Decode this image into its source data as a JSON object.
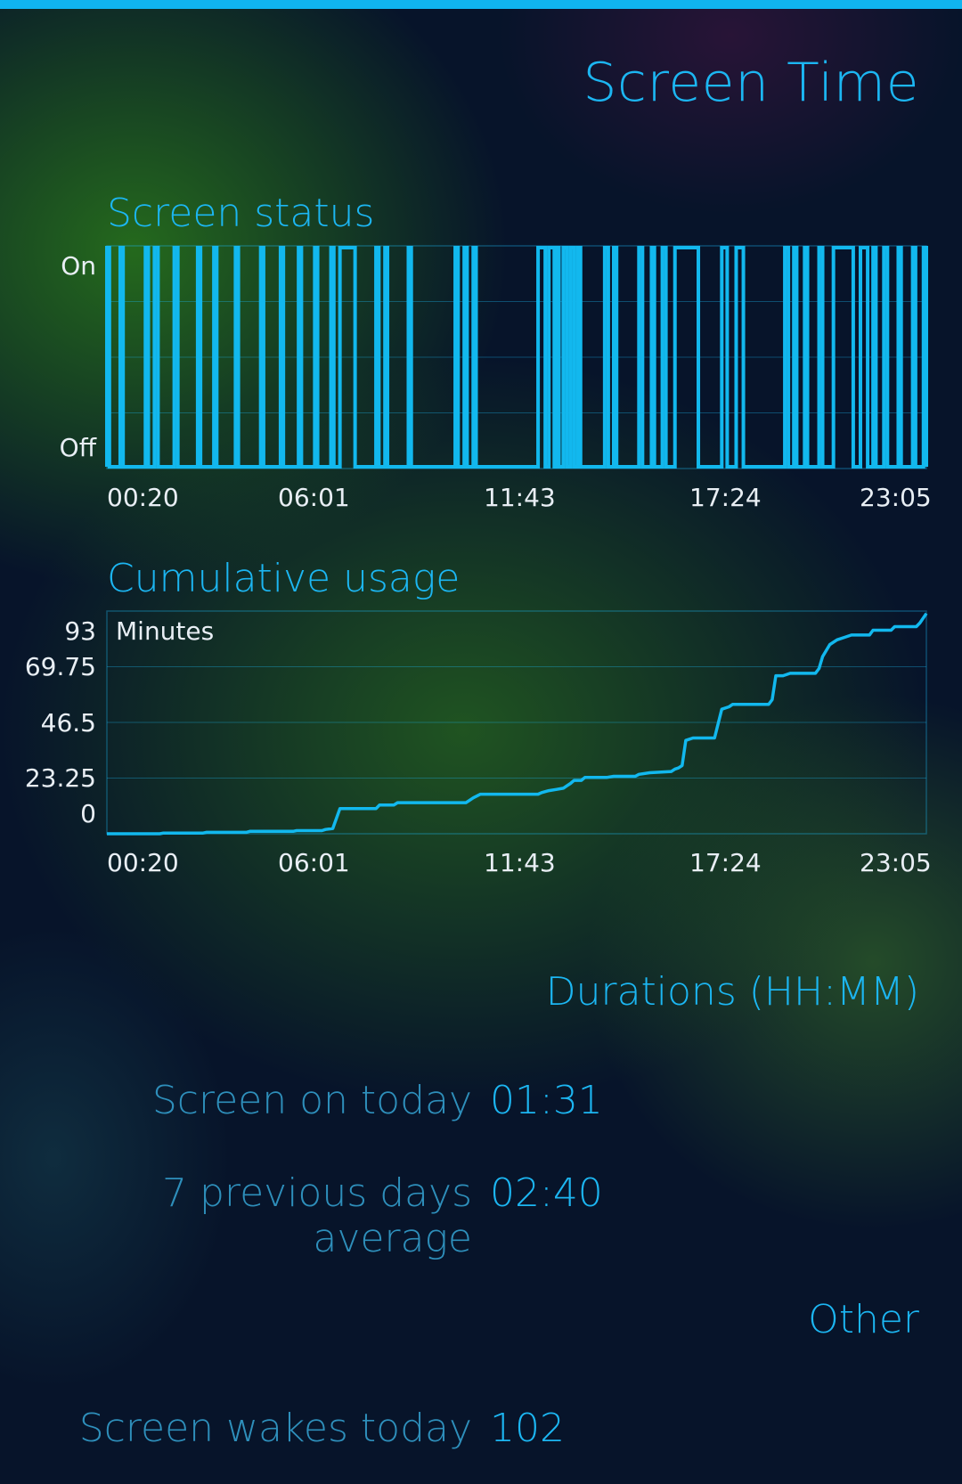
{
  "app": {
    "title": "Screen Time"
  },
  "status_chart": {
    "title": "Screen status",
    "y_labels": [
      "On",
      "Off"
    ],
    "x_labels": [
      "00:20",
      "06:01",
      "11:43",
      "17:24",
      "23:05"
    ]
  },
  "usage_chart": {
    "title": "Cumulative usage",
    "unit_label": "Minutes",
    "y_labels": [
      "93",
      "69.75",
      "46.5",
      "23.25",
      "0"
    ],
    "x_labels": [
      "00:20",
      "06:01",
      "11:43",
      "17:24",
      "23:05"
    ]
  },
  "durations": {
    "header": "Durations (HH:MM)",
    "rows": [
      {
        "label": "Screen on today",
        "value": "01:31"
      },
      {
        "label": "7 previous days average",
        "value": "02:40"
      }
    ]
  },
  "other": {
    "header": "Other",
    "rows": [
      {
        "label": "Screen wakes today",
        "value": "102"
      }
    ]
  },
  "colors": {
    "accent": "#1cb6f2",
    "label": "#2e8fbb",
    "line": "#12b8ee"
  },
  "chart_data": [
    {
      "type": "line",
      "title": "Screen status",
      "x_ticks": [
        "00:20",
        "06:01",
        "11:43",
        "17:24",
        "23:05"
      ],
      "y_ticks": [
        "On",
        "Off"
      ],
      "on_intervals_hours": [
        [
          0.33,
          0.4
        ],
        [
          0.7,
          0.78
        ],
        [
          1.4,
          1.48
        ],
        [
          1.65,
          1.75
        ],
        [
          2.2,
          2.3
        ],
        [
          2.85,
          2.93
        ],
        [
          3.3,
          3.38
        ],
        [
          3.9,
          3.98
        ],
        [
          4.6,
          4.68
        ],
        [
          5.15,
          5.23
        ],
        [
          5.65,
          5.73
        ],
        [
          6.1,
          6.18
        ],
        [
          6.55,
          6.63
        ],
        [
          6.8,
          7.22
        ],
        [
          7.8,
          7.88
        ],
        [
          8.05,
          8.12
        ],
        [
          8.7,
          8.78
        ],
        [
          10.0,
          10.08
        ],
        [
          10.25,
          10.33
        ],
        [
          10.5,
          10.58
        ],
        [
          12.3,
          12.5
        ],
        [
          12.6,
          12.75
        ],
        [
          12.82,
          12.88
        ],
        [
          13.0,
          13.1
        ],
        [
          13.2,
          13.3
        ],
        [
          13.4,
          13.48
        ],
        [
          14.15,
          14.25
        ],
        [
          14.4,
          14.48
        ],
        [
          15.1,
          15.2
        ],
        [
          15.45,
          15.53
        ],
        [
          15.75,
          15.85
        ],
        [
          16.1,
          16.75
        ],
        [
          17.4,
          17.55
        ],
        [
          17.8,
          18.0
        ],
        [
          19.15,
          19.25
        ],
        [
          19.4,
          19.48
        ],
        [
          19.7,
          19.78
        ],
        [
          20.1,
          20.2
        ],
        [
          20.5,
          21.05
        ],
        [
          21.25,
          21.45
        ],
        [
          21.6,
          21.68
        ],
        [
          21.9,
          22.0
        ],
        [
          22.3,
          22.38
        ],
        [
          22.7,
          22.78
        ],
        [
          23.0,
          23.08
        ]
      ]
    },
    {
      "type": "line",
      "title": "Cumulative usage",
      "ylabel": "Minutes",
      "x_ticks": [
        "00:20",
        "06:01",
        "11:43",
        "17:24",
        "23:05"
      ],
      "y_ticks": [
        93,
        69.75,
        46.5,
        23.25,
        0
      ],
      "ylim": [
        0,
        93
      ],
      "xlim_hours": [
        0.33,
        23.08
      ],
      "series": [
        {
          "x_hours": [
            0.33,
            1.8,
            1.9,
            3.0,
            3.1,
            4.2,
            4.3,
            5.5,
            5.6,
            6.3,
            6.4,
            6.6,
            6.8,
            7.8,
            7.9,
            8.3,
            8.4,
            10.3,
            10.4,
            10.5,
            10.7,
            12.3,
            12.4,
            12.6,
            12.8,
            13.0,
            13.1,
            13.2,
            13.3,
            13.5,
            13.6,
            14.2,
            14.4,
            15.0,
            15.1,
            15.4,
            16.0,
            16.1,
            16.2,
            16.3,
            16.4,
            16.6,
            16.8,
            17.1,
            17.2,
            17.4,
            17.6,
            17.7,
            18.7,
            18.8,
            18.9,
            19.1,
            19.3,
            20.0,
            20.1,
            20.2,
            20.4,
            20.6,
            20.8,
            21.0,
            21.5,
            21.6,
            22.1,
            22.2,
            22.8,
            22.9,
            23.08
          ],
          "y_minutes": [
            0,
            0,
            0.3,
            0.3,
            0.6,
            0.6,
            1.0,
            1.0,
            1.3,
            1.3,
            1.8,
            2.2,
            10.5,
            10.5,
            12.0,
            12.0,
            13.0,
            13.0,
            14.0,
            15.0,
            16.5,
            16.5,
            17.2,
            18.0,
            18.5,
            19.0,
            20.0,
            21.0,
            22.3,
            22.3,
            23.5,
            23.5,
            24.0,
            24.0,
            24.8,
            25.5,
            26.0,
            27.0,
            27.5,
            28.5,
            39.0,
            40.0,
            40.0,
            40.0,
            40.0,
            52.0,
            53.0,
            54.0,
            54.0,
            56.0,
            66.0,
            66.0,
            67.0,
            67.0,
            69.0,
            74.0,
            79.0,
            81.0,
            82.0,
            83.0,
            83.0,
            85.0,
            85.0,
            86.5,
            86.5,
            88.0,
            92.0
          ]
        }
      ]
    }
  ]
}
